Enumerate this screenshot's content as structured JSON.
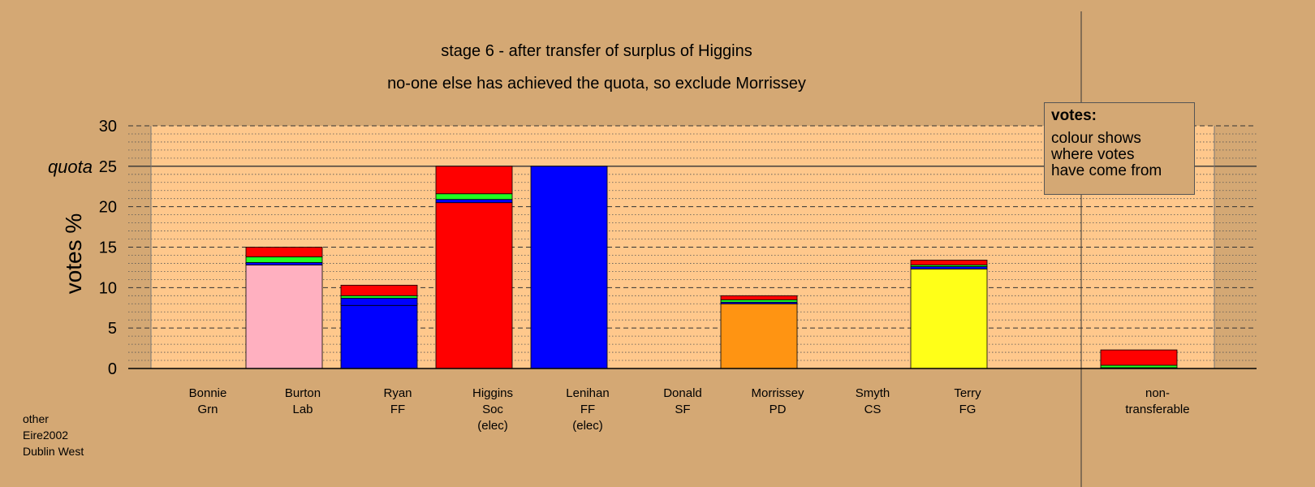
{
  "chart_data": {
    "type": "bar",
    "stacked": true,
    "title": "stage 6 - after transfer of surplus of Higgins",
    "subtitle": "no-one else has achieved the quota, so exclude Morrissey",
    "ylabel": "votes %",
    "ylim": [
      0,
      30
    ],
    "yticks": [
      0,
      5,
      10,
      15,
      20,
      25,
      30
    ],
    "quota": 25,
    "quota_label": "quota",
    "grid": true,
    "categories": [
      {
        "name": "Bonnie",
        "party": "Grn",
        "note": ""
      },
      {
        "name": "Burton",
        "party": "Lab",
        "note": ""
      },
      {
        "name": "Ryan",
        "party": "FF",
        "note": ""
      },
      {
        "name": "Higgins",
        "party": "Soc",
        "note": "(elec)"
      },
      {
        "name": "Lenihan",
        "party": "FF",
        "note": "(elec)"
      },
      {
        "name": "Donald",
        "party": "SF",
        "note": ""
      },
      {
        "name": "Morrissey",
        "party": "PD",
        "note": ""
      },
      {
        "name": "Smyth",
        "party": "CS",
        "note": ""
      },
      {
        "name": "Terry",
        "party": "FG",
        "note": ""
      },
      {
        "name": "",
        "party": "",
        "note": ""
      },
      {
        "name": "non-",
        "party": "transferable",
        "note": ""
      }
    ],
    "stacks": [
      [],
      [
        {
          "color": "#ffb0c0",
          "value": 12.8
        },
        {
          "color": "#0000ff",
          "value": 0.3
        },
        {
          "color": "#22ff22",
          "value": 0.7
        },
        {
          "color": "#ff0000",
          "value": 1.2
        }
      ],
      [
        {
          "color": "#0000ff",
          "value": 7.8
        },
        {
          "color": "#0000ff",
          "value": 0.9
        },
        {
          "color": "#22ff22",
          "value": 0.3
        },
        {
          "color": "#ff0000",
          "value": 1.3
        }
      ],
      [
        {
          "color": "#ff0000",
          "value": 20.5
        },
        {
          "color": "#0000ff",
          "value": 0.4
        },
        {
          "color": "#22ff22",
          "value": 0.7
        },
        {
          "color": "#ff0000",
          "value": 3.4
        }
      ],
      [
        {
          "color": "#0000ff",
          "value": 25.0
        }
      ],
      [],
      [
        {
          "color": "#ff9412",
          "value": 8.0
        },
        {
          "color": "#0000ff",
          "value": 0.2
        },
        {
          "color": "#22ff22",
          "value": 0.3
        },
        {
          "color": "#ff0000",
          "value": 0.5
        }
      ],
      [],
      [
        {
          "color": "#ffff18",
          "value": 12.3
        },
        {
          "color": "#0000ff",
          "value": 0.3
        },
        {
          "color": "#22ff22",
          "value": 0.2
        },
        {
          "color": "#ff0000",
          "value": 0.6
        }
      ],
      [],
      [
        {
          "color": "#0000ff",
          "value": 0.1
        },
        {
          "color": "#22ff22",
          "value": 0.3
        },
        {
          "color": "#ff0000",
          "value": 1.9
        }
      ]
    ]
  },
  "legend": {
    "title": "votes:",
    "lines": [
      "colour shows",
      "where votes",
      "have come from"
    ]
  },
  "source": {
    "lines": [
      "other",
      "Eire2002",
      "Dublin West"
    ]
  }
}
